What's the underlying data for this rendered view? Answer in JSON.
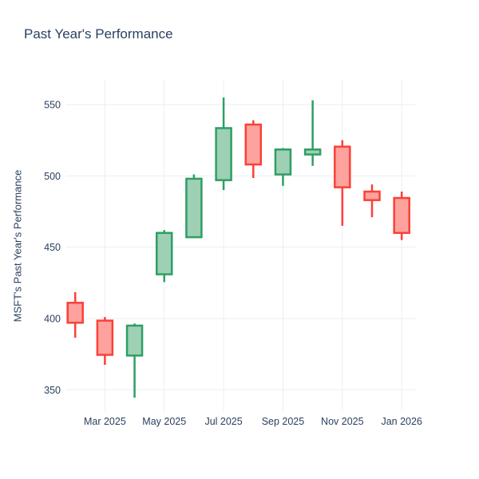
{
  "chart": {
    "title": "Past Year's Performance"
  },
  "chart_data": {
    "type": "candlestick",
    "title": "Past Year's Performance",
    "xlabel": "",
    "ylabel": "MSFT's Past Year's Performance",
    "categories": [
      "Feb 2025",
      "Mar 2025",
      "Apr 2025",
      "May 2025",
      "Jun 2025",
      "Jul 2025",
      "Aug 2025",
      "Sep 2025",
      "Oct 2025",
      "Nov 2025",
      "Dec 2025",
      "Jan 2026"
    ],
    "series": [
      {
        "name": "MSFT",
        "open": [
          411.0,
          398.5,
          374.0,
          431.0,
          457.0,
          497.0,
          536.0,
          501.0,
          515.0,
          520.5,
          489.0,
          484.5
        ],
        "high": [
          418.5,
          401.0,
          396.5,
          462.0,
          501.0,
          555.0,
          539.0,
          519.5,
          553.0,
          525.0,
          494.0,
          489.0
        ],
        "low": [
          386.5,
          367.5,
          344.5,
          425.5,
          456.5,
          490.0,
          498.5,
          493.0,
          507.0,
          465.0,
          471.0,
          455.0
        ],
        "close": [
          397.0,
          374.5,
          395.0,
          460.0,
          498.0,
          533.5,
          508.0,
          518.5,
          518.5,
          492.0,
          483.0,
          460.0
        ]
      }
    ],
    "y_ticks": [
      350,
      400,
      450,
      500,
      550
    ],
    "x_tick_labels": [
      "Mar 2025",
      "May 2025",
      "Jul 2025",
      "Sep 2025",
      "Nov 2025",
      "Jan 2026"
    ],
    "x_tick_month_indices": [
      1,
      3,
      5,
      7,
      9,
      11
    ],
    "ylim": [
      340,
      560
    ],
    "grid": true,
    "legend": "none",
    "colors": {
      "increasing_line": "#2f9e63",
      "increasing_fill": "#9dd0b5",
      "decreasing_line": "#fb4038",
      "decreasing_fill": "#fda29c",
      "text": "#2a3f5f",
      "grid": "#ebeef6",
      "background": "#ffffff"
    }
  }
}
